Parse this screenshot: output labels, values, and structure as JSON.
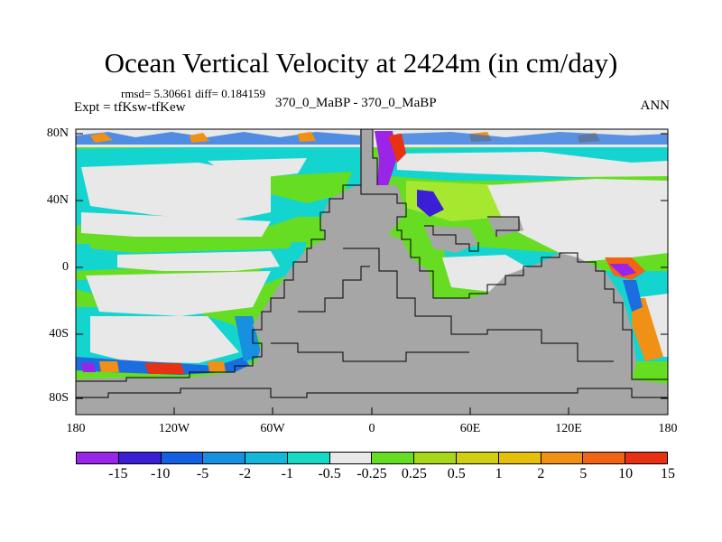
{
  "title": "Ocean Vertical Velocity at 2424m (in cm/day)",
  "stats": "rmsd= 5.30661 diff= 0.184159",
  "expt": "Expt = tfKsw-tfKew",
  "subtitle": "370_0_MaBP - 370_0_MaBP",
  "season": "ANN",
  "axes": {
    "y_ticks": [
      "80N",
      "40N",
      "0",
      "40S",
      "80S"
    ],
    "x_ticks": [
      "180",
      "120W",
      "60W",
      "0",
      "60E",
      "120E",
      "180"
    ]
  },
  "colorbar": {
    "labels": [
      "-15",
      "-10",
      "-5",
      "-2",
      "-1",
      "-0.5",
      "-0.25",
      "0.25",
      "0.5",
      "1",
      "2",
      "5",
      "10",
      "15"
    ],
    "colors": [
      "#9a24e8",
      "#3a1fd6",
      "#1560e0",
      "#1890e0",
      "#14b7d8",
      "#16d9c6",
      "#e8e8e8",
      "#66dd22",
      "#a6d818",
      "#d0d010",
      "#e6c008",
      "#f09014",
      "#f06414",
      "#e83012"
    ]
  },
  "colors": {
    "land": "#a6a6a6",
    "ocean_neutral": "#e8e8e8",
    "cyan": "#14d4d0",
    "green": "#66dd22",
    "light_green": "#a6e830",
    "blue": "#1c6ee0",
    "purple": "#9a24e8",
    "red": "#e83012",
    "orange": "#f09014",
    "yellow": "#e6c008"
  }
}
